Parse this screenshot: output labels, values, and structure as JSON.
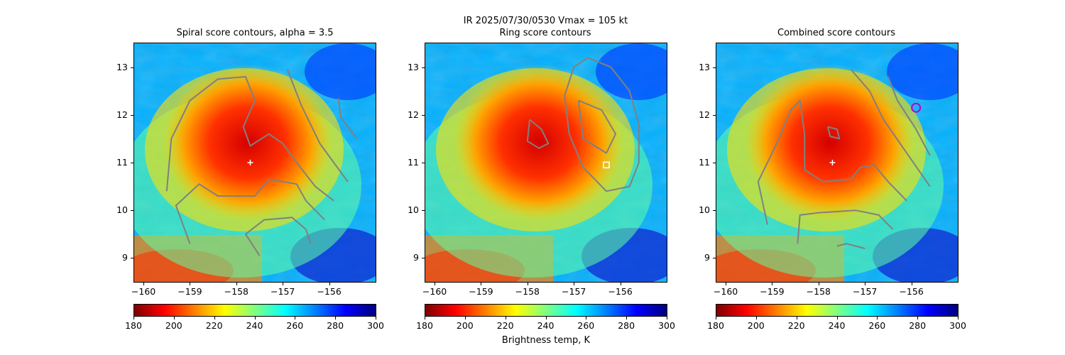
{
  "figure": {
    "suptitle_line1": "IR  2025/07/30/0530    Vmax = 105 kt",
    "colorbar_label": "Brightness temp, K"
  },
  "colors": {
    "contour": "#808080",
    "center_marker": "#ffffff",
    "ring_marker": "#ffffff",
    "combined_marker": "#c000c0",
    "colormap": "jet_r"
  },
  "chart_data": [
    {
      "type": "heatmap",
      "title": "Spiral score contours, alpha =  3.5",
      "xlim": [
        -160.2,
        -155.0
      ],
      "ylim": [
        8.5,
        13.5
      ],
      "xticks": [
        "−160",
        "−159",
        "−158",
        "−157",
        "−156"
      ],
      "yticks": [
        "9",
        "10",
        "11",
        "12",
        "13"
      ],
      "center": {
        "lon": -157.7,
        "lat": 11.0,
        "marker": "+"
      },
      "colorbar": {
        "min": 180,
        "max": 300,
        "ticks": [
          "180",
          "200",
          "220",
          "240",
          "260",
          "280",
          "300"
        ]
      },
      "contours": [
        [
          [
            -159.5,
            10.4
          ],
          [
            -159.4,
            11.5
          ],
          [
            -159.0,
            12.3
          ],
          [
            -158.4,
            12.75
          ],
          [
            -157.8,
            12.8
          ],
          [
            -157.6,
            12.3
          ],
          [
            -157.85,
            11.75
          ],
          [
            -157.7,
            11.35
          ],
          [
            -157.3,
            11.6
          ],
          [
            -157.0,
            11.4
          ],
          [
            -156.7,
            11.0
          ],
          [
            -156.3,
            10.5
          ],
          [
            -155.9,
            10.2
          ]
        ],
        [
          [
            -156.9,
            12.95
          ],
          [
            -156.6,
            12.2
          ],
          [
            -156.2,
            11.4
          ],
          [
            -155.6,
            10.6
          ]
        ],
        [
          [
            -155.8,
            12.35
          ],
          [
            -155.75,
            11.95
          ],
          [
            -155.4,
            11.5
          ]
        ],
        [
          [
            -159.0,
            9.3
          ],
          [
            -159.3,
            10.1
          ],
          [
            -158.8,
            10.55
          ],
          [
            -158.4,
            10.3
          ],
          [
            -157.6,
            10.3
          ],
          [
            -157.3,
            10.65
          ],
          [
            -156.7,
            10.55
          ],
          [
            -156.5,
            10.2
          ],
          [
            -156.1,
            9.8
          ]
        ],
        [
          [
            -157.5,
            9.05
          ],
          [
            -157.8,
            9.5
          ],
          [
            -157.4,
            9.8
          ],
          [
            -156.8,
            9.85
          ],
          [
            -156.5,
            9.6
          ],
          [
            -156.4,
            9.3
          ]
        ]
      ]
    },
    {
      "type": "heatmap",
      "title": "Ring score contours",
      "xlim": [
        -160.2,
        -155.0
      ],
      "ylim": [
        8.5,
        13.5
      ],
      "xticks": [
        "−160",
        "−159",
        "−158",
        "−157",
        "−156"
      ],
      "yticks": [
        "9",
        "10",
        "11",
        "12",
        "13"
      ],
      "marker": {
        "lon": -156.3,
        "lat": 10.95,
        "marker": "square"
      },
      "colorbar": {
        "min": 180,
        "max": 300,
        "ticks": [
          "180",
          "200",
          "220",
          "240",
          "260",
          "280",
          "300"
        ]
      },
      "contours": [
        [
          [
            -156.7,
            13.2
          ],
          [
            -156.2,
            13.0
          ],
          [
            -155.8,
            12.5
          ],
          [
            -155.6,
            11.8
          ],
          [
            -155.6,
            11.0
          ],
          [
            -155.8,
            10.5
          ],
          [
            -156.3,
            10.4
          ],
          [
            -156.8,
            10.9
          ],
          [
            -157.1,
            11.6
          ],
          [
            -157.2,
            12.4
          ],
          [
            -157.0,
            13.0
          ],
          [
            -156.7,
            13.2
          ]
        ],
        [
          [
            -157.95,
            11.9
          ],
          [
            -157.7,
            11.7
          ],
          [
            -157.55,
            11.4
          ],
          [
            -157.75,
            11.3
          ],
          [
            -158.0,
            11.45
          ],
          [
            -157.95,
            11.9
          ]
        ],
        [
          [
            -156.9,
            12.3
          ],
          [
            -156.4,
            12.1
          ],
          [
            -156.1,
            11.6
          ],
          [
            -156.3,
            11.2
          ],
          [
            -156.8,
            11.5
          ],
          [
            -156.9,
            12.3
          ]
        ]
      ]
    },
    {
      "type": "heatmap",
      "title": "Combined score contours",
      "xlim": [
        -160.2,
        -155.0
      ],
      "ylim": [
        8.5,
        13.5
      ],
      "xticks": [
        "−160",
        "−159",
        "−158",
        "−157",
        "−156"
      ],
      "yticks": [
        "9",
        "10",
        "11",
        "12",
        "13"
      ],
      "center": {
        "lon": -157.7,
        "lat": 11.0,
        "marker": "+"
      },
      "marker": {
        "lon": -155.9,
        "lat": 12.15,
        "marker": "circle"
      },
      "colorbar": {
        "min": 180,
        "max": 300,
        "ticks": [
          "180",
          "200",
          "220",
          "240",
          "260",
          "280",
          "300"
        ]
      },
      "contours": [
        [
          [
            -159.1,
            9.7
          ],
          [
            -159.3,
            10.6
          ],
          [
            -158.9,
            11.4
          ],
          [
            -158.6,
            12.1
          ],
          [
            -158.4,
            12.3
          ],
          [
            -158.3,
            11.6
          ],
          [
            -158.3,
            10.85
          ],
          [
            -157.9,
            10.6
          ],
          [
            -157.3,
            10.65
          ],
          [
            -157.1,
            10.9
          ],
          [
            -156.8,
            10.95
          ],
          [
            -156.5,
            10.6
          ],
          [
            -156.1,
            10.2
          ]
        ],
        [
          [
            -157.3,
            12.95
          ],
          [
            -156.9,
            12.5
          ],
          [
            -156.6,
            11.9
          ],
          [
            -156.1,
            11.2
          ],
          [
            -155.6,
            10.5
          ]
        ],
        [
          [
            -156.5,
            12.8
          ],
          [
            -156.3,
            12.3
          ],
          [
            -155.9,
            11.7
          ],
          [
            -155.6,
            11.15
          ]
        ],
        [
          [
            -157.8,
            11.75
          ],
          [
            -157.6,
            11.7
          ],
          [
            -157.55,
            11.5
          ],
          [
            -157.75,
            11.55
          ],
          [
            -157.8,
            11.75
          ]
        ],
        [
          [
            -158.45,
            9.3
          ],
          [
            -158.4,
            9.9
          ],
          [
            -158.0,
            9.95
          ],
          [
            -157.2,
            10.0
          ],
          [
            -156.7,
            9.9
          ],
          [
            -156.4,
            9.6
          ]
        ],
        [
          [
            -157.6,
            9.25
          ],
          [
            -157.4,
            9.3
          ],
          [
            -157.0,
            9.2
          ]
        ]
      ]
    }
  ]
}
